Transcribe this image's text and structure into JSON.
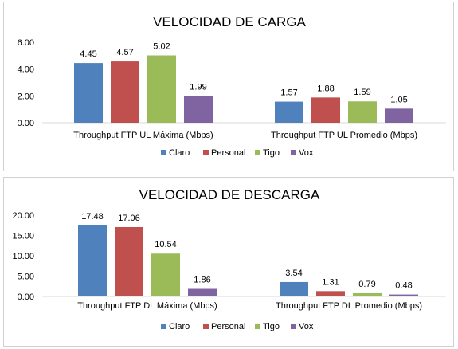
{
  "colors": {
    "Claro": "#4f81bd",
    "Personal": "#c0504d",
    "Tigo": "#9bbb59",
    "Vox": "#8064a2",
    "axis": "#d9d9d9"
  },
  "chart_data": [
    {
      "type": "bar",
      "title": "VELOCIDAD DE CARGA",
      "categories": [
        "Throughput FTP UL Máxima (Mbps)",
        "Throughput FTP UL Promedio (Mbps)"
      ],
      "series": [
        {
          "name": "Claro",
          "values": [
            4.45,
            1.57
          ]
        },
        {
          "name": "Personal",
          "values": [
            4.57,
            1.88
          ]
        },
        {
          "name": "Tigo",
          "values": [
            5.02,
            1.59
          ]
        },
        {
          "name": "Vox",
          "values": [
            1.99,
            1.05
          ]
        }
      ],
      "yticks": [
        "0.00",
        "2.00",
        "4.00",
        "6.00"
      ],
      "ylim": [
        0,
        6
      ],
      "legend": "bottom",
      "grid": false
    },
    {
      "type": "bar",
      "title": "VELOCIDAD DE DESCARGA",
      "categories": [
        "Throughput FTP DL Máxima (Mbps)",
        "Throughput FTP DL Promedio (Mbps)"
      ],
      "series": [
        {
          "name": "Claro",
          "values": [
            17.48,
            3.54
          ]
        },
        {
          "name": "Personal",
          "values": [
            17.06,
            1.31
          ]
        },
        {
          "name": "Tigo",
          "values": [
            10.54,
            0.79
          ]
        },
        {
          "name": "Vox",
          "values": [
            1.86,
            0.48
          ]
        }
      ],
      "yticks": [
        "0.00",
        "5.00",
        "10.00",
        "15.00",
        "20.00"
      ],
      "ylim": [
        0,
        20
      ],
      "legend": "bottom",
      "grid": false
    }
  ]
}
